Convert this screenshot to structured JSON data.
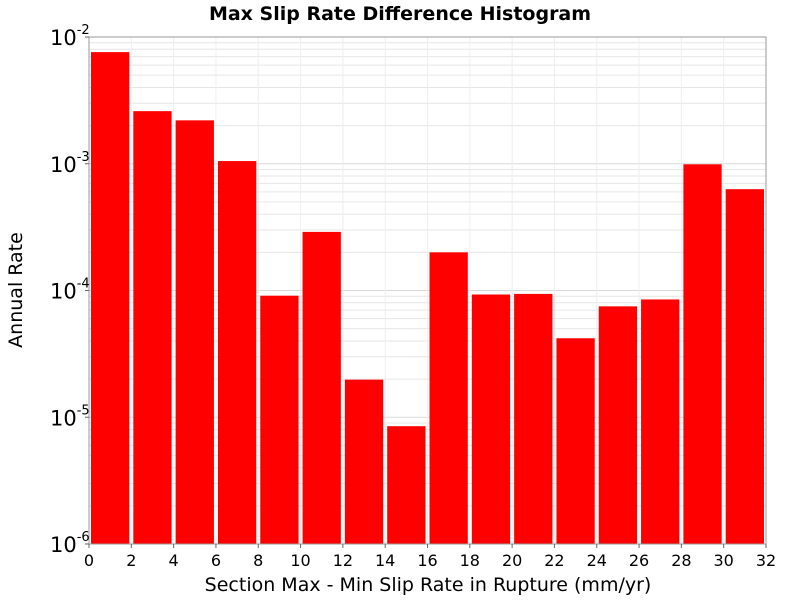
{
  "chart_data": {
    "type": "bar",
    "title": "Max Slip Rate Difference Histogram",
    "xlabel": "Section Max - Min Slip Rate in Rupture (mm/yr)",
    "ylabel": "Annual Rate",
    "y_scale": "log",
    "xlim": [
      0,
      32
    ],
    "ylim": [
      1e-06,
      0.01
    ],
    "grid": true,
    "bar_color": "#ff0000",
    "x_ticks": [
      "0",
      "2",
      "4",
      "6",
      "8",
      "10",
      "12",
      "14",
      "16",
      "18",
      "20",
      "22",
      "24",
      "26",
      "28",
      "30",
      "32"
    ],
    "y_ticks": [
      {
        "base": "10",
        "exp": "-6"
      },
      {
        "base": "10",
        "exp": "-5"
      },
      {
        "base": "10",
        "exp": "-4"
      },
      {
        "base": "10",
        "exp": "-3"
      },
      {
        "base": "10",
        "exp": "-2"
      }
    ],
    "bins": [
      {
        "x0": 0,
        "x1": 2,
        "value": 0.0076
      },
      {
        "x0": 2,
        "x1": 4,
        "value": 0.0026
      },
      {
        "x0": 4,
        "x1": 6,
        "value": 0.0022
      },
      {
        "x0": 6,
        "x1": 8,
        "value": 0.00105
      },
      {
        "x0": 8,
        "x1": 10,
        "value": 9.1e-05
      },
      {
        "x0": 10,
        "x1": 12,
        "value": 0.00029
      },
      {
        "x0": 12,
        "x1": 14,
        "value": 1.98e-05
      },
      {
        "x0": 14,
        "x1": 16,
        "value": 8.5e-06
      },
      {
        "x0": 16,
        "x1": 18,
        "value": 0.0002
      },
      {
        "x0": 18,
        "x1": 20,
        "value": 9.3e-05
      },
      {
        "x0": 20,
        "x1": 22,
        "value": 9.4e-05
      },
      {
        "x0": 22,
        "x1": 24,
        "value": 4.2e-05
      },
      {
        "x0": 24,
        "x1": 26,
        "value": 7.5e-05
      },
      {
        "x0": 26,
        "x1": 28,
        "value": 8.5e-05
      },
      {
        "x0": 28,
        "x1": 30,
        "value": 0.00099
      },
      {
        "x0": 30,
        "x1": 32,
        "value": 0.00063
      }
    ]
  }
}
